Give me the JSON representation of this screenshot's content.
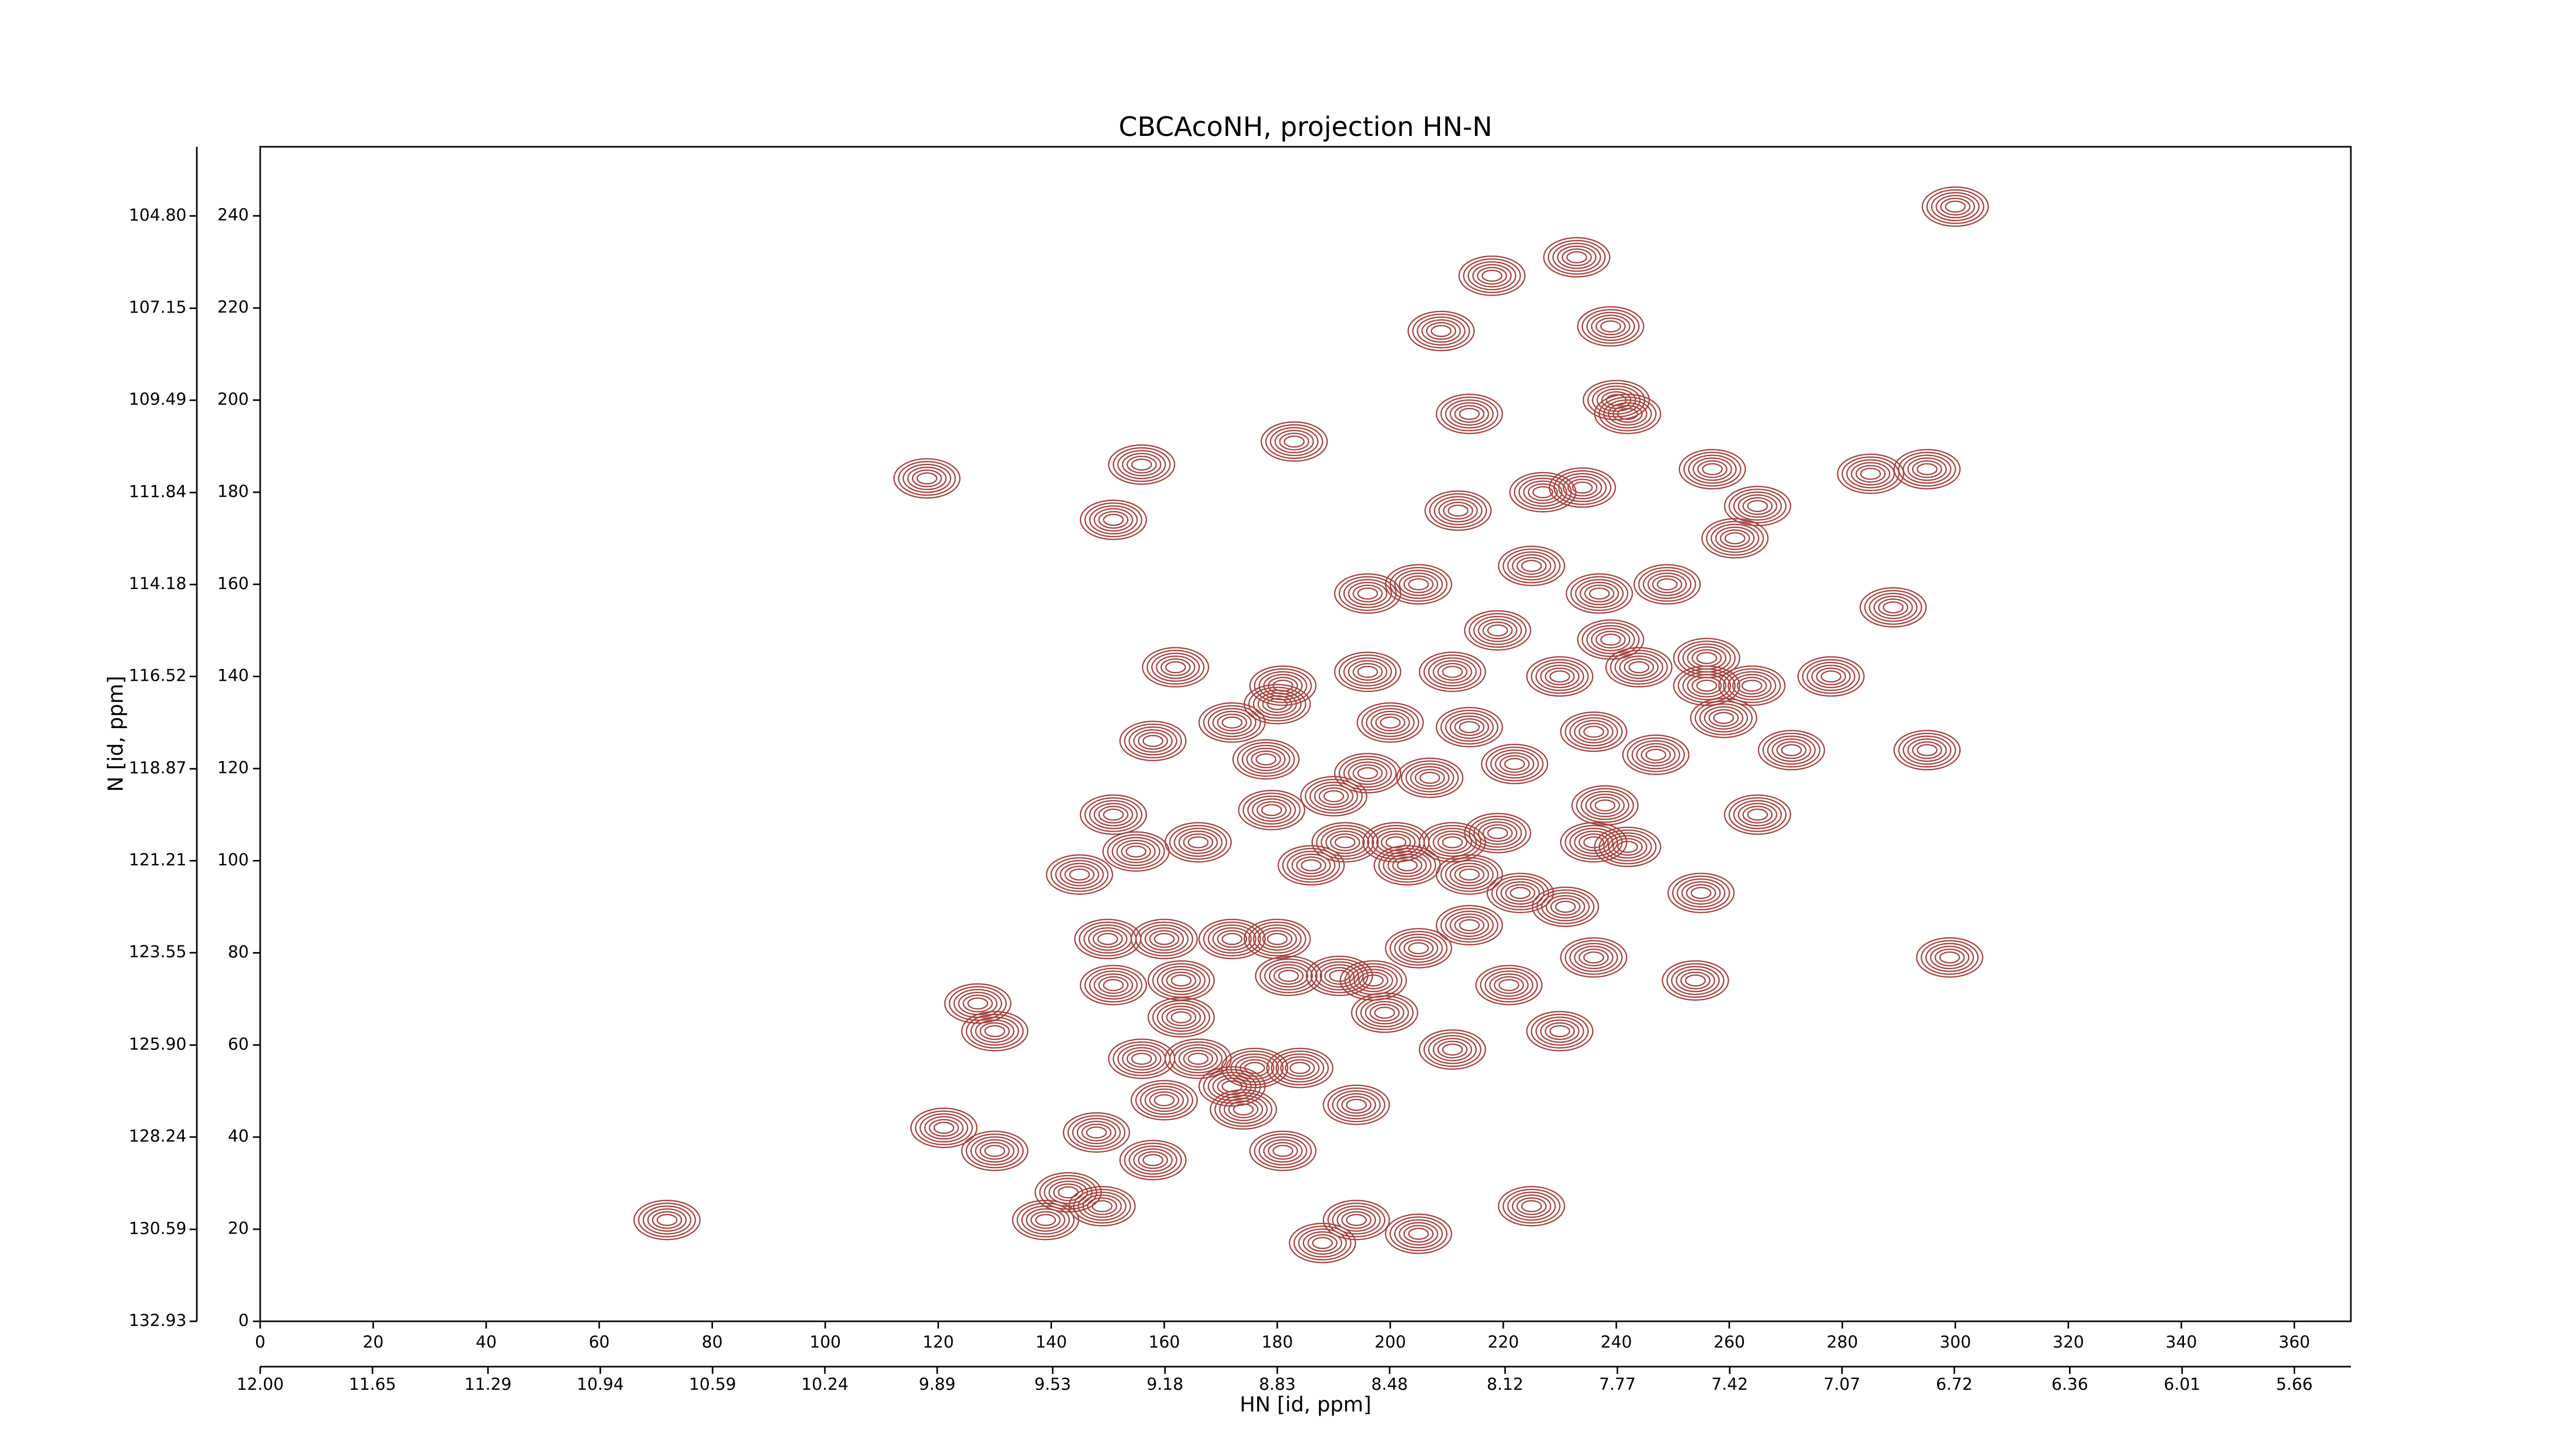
{
  "chart_data": {
    "type": "contour",
    "title": "CBCAcoNH, projection HN-N",
    "xlabel": "HN [id, ppm]",
    "ylabel": "N [id, ppm]",
    "color": "#a8413c",
    "xlim": [
      0,
      370
    ],
    "xticks": [
      0,
      20,
      40,
      60,
      80,
      100,
      120,
      140,
      160,
      180,
      200,
      220,
      240,
      260,
      280,
      300,
      320,
      340,
      360
    ],
    "ylim": [
      0,
      255
    ],
    "yticks": [
      0,
      20,
      40,
      60,
      80,
      100,
      120,
      140,
      160,
      180,
      200,
      220,
      240
    ],
    "x2lim": [
      12.0,
      5.484
    ],
    "x2ticks": [
      {
        "value": 12,
        "label": "12.00"
      },
      11.65,
      11.29,
      10.94,
      10.59,
      10.24,
      9.89,
      9.53,
      9.18,
      8.83,
      8.48,
      8.12,
      7.77,
      7.42,
      7.07,
      6.72,
      6.36,
      6.01,
      5.66
    ],
    "y2lim": [
      132.93,
      103.04
    ],
    "y2ticks": [
      132.93,
      130.59,
      128.24,
      {
        "value": 125.9,
        "label": "125.90"
      },
      123.55,
      121.21,
      118.87,
      116.52,
      114.18,
      111.84,
      109.49,
      107.15,
      {
        "value": 104.8,
        "label": "104.80"
      }
    ],
    "x": [
      300,
      218,
      233,
      239,
      209,
      214,
      240,
      242,
      183,
      156,
      118,
      212,
      227,
      234,
      257,
      265,
      261,
      285,
      295,
      151,
      289,
      225,
      205,
      196,
      237,
      249,
      219,
      239,
      256,
      244,
      278,
      230,
      211,
      196,
      162,
      181,
      180,
      172,
      259,
      236,
      256,
      264,
      214,
      200,
      158,
      247,
      271,
      295,
      222,
      178,
      207,
      196,
      190,
      179,
      151,
      265,
      238,
      166,
      155,
      192,
      201,
      211,
      236,
      242,
      219,
      145,
      186,
      203,
      214,
      223,
      231,
      255,
      205,
      214,
      150,
      160,
      172,
      180,
      191,
      197,
      236,
      299,
      221,
      254,
      151,
      163,
      182,
      127,
      130,
      163,
      199,
      230,
      211,
      156,
      166,
      176,
      184,
      172,
      160,
      174,
      194,
      121,
      130,
      148,
      158,
      181,
      143,
      139,
      149,
      194,
      188,
      205,
      225,
      72
    ],
    "y": [
      242,
      227,
      231,
      216,
      215,
      197,
      200,
      197,
      191,
      186,
      183,
      176,
      180,
      181,
      185,
      177,
      170,
      184,
      185,
      174,
      155,
      164,
      160,
      158,
      158,
      160,
      150,
      148,
      144,
      142,
      140,
      140,
      141,
      141,
      142,
      138,
      134,
      130,
      131,
      128,
      138,
      138,
      129,
      130,
      126,
      123,
      124,
      124,
      121,
      122,
      118,
      119,
      114,
      111,
      110,
      110,
      112,
      104,
      102,
      104,
      104,
      104,
      104,
      103,
      106,
      97,
      99,
      99,
      97,
      93,
      90,
      93,
      81,
      86,
      83,
      83,
      83,
      83,
      75,
      74,
      79,
      79,
      73,
      74,
      73,
      74,
      75,
      69,
      63,
      66,
      67,
      63,
      59,
      57,
      57,
      55,
      55,
      51,
      48,
      46,
      47,
      42,
      37,
      41,
      35,
      37,
      28,
      22,
      25,
      22,
      17,
      19,
      25,
      22
    ]
  }
}
